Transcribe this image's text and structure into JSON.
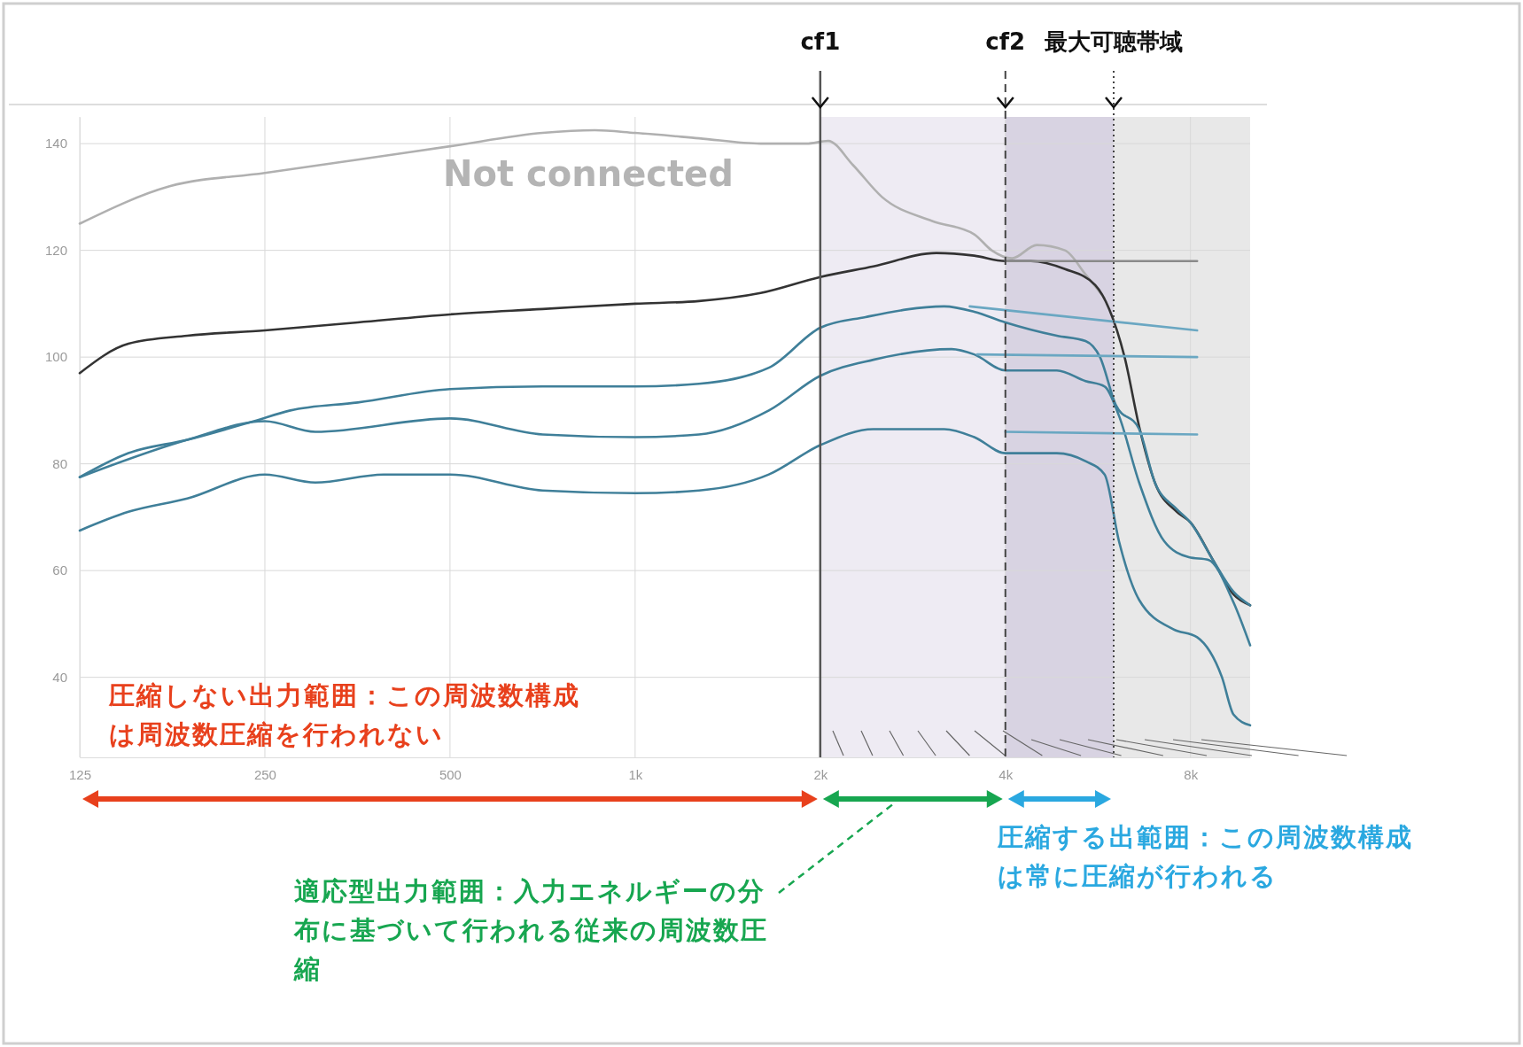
{
  "chart_data": {
    "type": "line",
    "annotations": [
      "Not connected",
      "圧縮しない出力範囲：この周波数構成は周波数圧縮を行われない",
      "適応型出力範囲：入力エネルギーの分布に基づいて行われる従来の周波数圧縮",
      "圧縮する出範囲：この周波数構成は常に圧縮が行われる"
    ],
    "log": "x",
    "grid": true,
    "marker": "none",
    "line_style": "solid",
    "xlim": [
      125,
      10000
    ],
    "ylim": [
      25,
      145
    ],
    "xticks": [
      125,
      250,
      500,
      {
        "value": 1000,
        "label": "1k"
      },
      {
        "value": 2000,
        "label": "2k"
      },
      {
        "value": 4000,
        "label": "4k"
      },
      {
        "value": 8000,
        "label": "8k"
      }
    ],
    "yticks": [
      40,
      60,
      80,
      100,
      120,
      140
    ],
    "series": [
      {
        "color": "#b0b0b0",
        "x": [
          125,
          175,
          250,
          354,
          500,
          707,
          860,
          1000,
          1270,
          1600,
          1900,
          2060,
          2260,
          2520,
          3040,
          3560,
          3800,
          4100,
          4500,
          5000,
          5400,
          5800
        ],
        "values": [
          125,
          132,
          134.5,
          137,
          139.5,
          142,
          142.5,
          142,
          141,
          140,
          140,
          140.5,
          136,
          130,
          125.5,
          123,
          120,
          118.5,
          121,
          120,
          115.5,
          111
        ]
      },
      {
        "color": "#333333",
        "x": [
          125,
          150,
          187,
          250,
          354,
          500,
          707,
          1000,
          1270,
          1600,
          2000,
          2440,
          3090,
          3560,
          4000,
          4400,
          5000,
          5600,
          5900,
          6250,
          6600,
          7000,
          7600,
          8000,
          8700,
          9400,
          10000
        ],
        "values": [
          97,
          102.5,
          104,
          105,
          106.5,
          108,
          109,
          110,
          110.5,
          112,
          115,
          117,
          119.5,
          119,
          118,
          118,
          116.5,
          113.5,
          109,
          100,
          87,
          76.5,
          71,
          69,
          62,
          55.5,
          53.5
        ]
      },
      {
        "color": "#3f7f99",
        "x": [
          125,
          150,
          187,
          240,
          275,
          354,
          500,
          707,
          1000,
          1270,
          1650,
          2000,
          2370,
          3180,
          3560,
          4000,
          4850,
          5400,
          5700,
          6050,
          6600,
          7000,
          7600,
          8000,
          8700,
          9400,
          10000
        ],
        "values": [
          77.5,
          82,
          84.5,
          88,
          90,
          91.5,
          94,
          94.5,
          94.5,
          95,
          98,
          105.5,
          107.5,
          109.5,
          108.5,
          106.5,
          104,
          103,
          100,
          91,
          86.5,
          76.5,
          71.5,
          69,
          62,
          56,
          53.5
        ]
      },
      {
        "color": "#3f7f99",
        "x": [
          125,
          187,
          250,
          302,
          500,
          707,
          1000,
          1270,
          1650,
          2000,
          2440,
          3270,
          3560,
          4000,
          4850,
          5400,
          5800,
          6120,
          6600,
          7250,
          7950,
          8550,
          9400,
          10000
        ],
        "values": [
          77.5,
          84.5,
          88,
          86,
          88.5,
          85.5,
          85,
          85.5,
          90,
          96.5,
          99.5,
          101.5,
          100.5,
          97.5,
          97.5,
          95.5,
          94.5,
          89,
          76.5,
          65.5,
          62.5,
          62,
          54,
          46
        ]
      },
      {
        "color": "#3f7f99",
        "x": [
          125,
          150,
          187,
          250,
          302,
          390,
          500,
          707,
          1000,
          1270,
          1650,
          2000,
          2440,
          3180,
          3560,
          4000,
          4850,
          5400,
          5800,
          6120,
          6600,
          7500,
          8200,
          9000,
          9400,
          10000
        ],
        "values": [
          67.5,
          71,
          73.5,
          78,
          76.5,
          78,
          78,
          75,
          74.5,
          75,
          78,
          83.5,
          86.5,
          86.5,
          85,
          82,
          82,
          80.5,
          78,
          65.5,
          54.5,
          49,
          47.5,
          40,
          33,
          31
        ]
      },
      {
        "color": "#8a8a8a",
        "x": [
          4000,
          8200
        ],
        "values": [
          118,
          118
        ]
      },
      {
        "color": "#6aa7c2",
        "x": [
          3500,
          8200
        ],
        "values": [
          109.5,
          105
        ]
      },
      {
        "color": "#6aa7c2",
        "x": [
          3600,
          8200
        ],
        "values": [
          100.5,
          100
        ]
      },
      {
        "color": "#6aa7c2",
        "x": [
          4000,
          8200
        ],
        "values": [
          86,
          85.5
        ]
      }
    ],
    "ref_lines": [
      {
        "axis": "x",
        "value": 2000,
        "label": "cf1",
        "color": "#555555",
        "line_style": "solid"
      },
      {
        "axis": "x",
        "value": 4000,
        "label": "cf2",
        "color": "#444444",
        "line_style": "dashed"
      },
      {
        "axis": "x",
        "value": 6000,
        "label": "最大可聴帯域",
        "color": "#444444",
        "line_style": "dotted"
      }
    ],
    "bands": [
      {
        "axis": "x",
        "from": 2000,
        "to": 4000,
        "color": "#eeebf3"
      },
      {
        "axis": "x",
        "from": 4000,
        "to": 6000,
        "color": "#d8d3e2"
      },
      {
        "axis": "x",
        "from": 6000,
        "to": 10000,
        "color": "#e8e8e8"
      }
    ]
  }
}
